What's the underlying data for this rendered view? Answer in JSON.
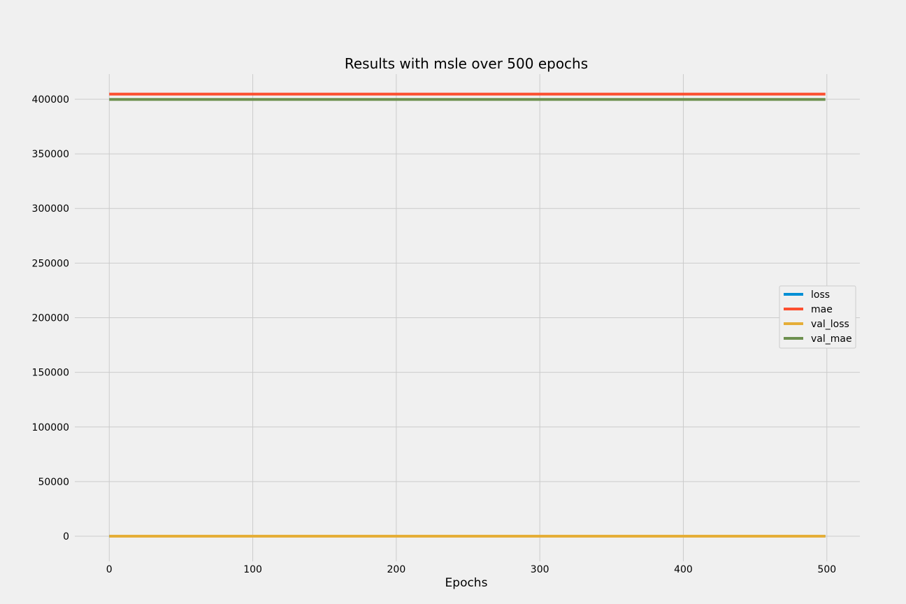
{
  "chart_data": {
    "type": "line",
    "title": "Results with msle over 500 epochs",
    "xlabel": "Epochs",
    "ylabel": "",
    "xlim": [
      -24,
      523
    ],
    "ylim": [
      -23000,
      423000
    ],
    "x_ticks": [
      0,
      100,
      200,
      300,
      400,
      500
    ],
    "y_ticks": [
      0,
      50000,
      100000,
      150000,
      200000,
      250000,
      300000,
      350000,
      400000
    ],
    "x_range": [
      0,
      499
    ],
    "grid": true,
    "legend_position": "center-right",
    "background": "#f0f0f0",
    "grid_color": "#cbcbcb",
    "series": [
      {
        "name": "loss",
        "color": "#008fd5",
        "x": [
          0,
          499
        ],
        "values": [
          0,
          0
        ]
      },
      {
        "name": "mae",
        "color": "#fc4f30",
        "x": [
          0,
          499
        ],
        "values": [
          404700,
          404700
        ]
      },
      {
        "name": "val_loss",
        "color": "#e5ae38",
        "x": [
          0,
          499
        ],
        "values": [
          0,
          0
        ]
      },
      {
        "name": "val_mae",
        "color": "#6d904f",
        "x": [
          0,
          499
        ],
        "values": [
          399800,
          399800
        ]
      }
    ]
  }
}
